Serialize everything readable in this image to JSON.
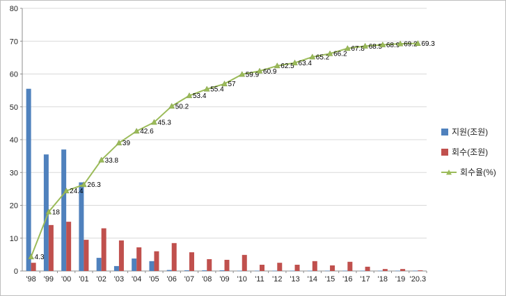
{
  "chart_data": {
    "type": "bar",
    "subtype": "combo-bar-line",
    "categories": [
      "'98",
      "'99",
      "'00",
      "'01",
      "'02",
      "'03",
      "'04",
      "'05",
      "'06",
      "'07",
      "'08",
      "'09",
      "'10",
      "'11",
      "'12",
      "'13",
      "'14",
      "'15",
      "'16",
      "'17",
      "'18",
      "'19",
      "'20.3"
    ],
    "series": [
      {
        "name": "지원(조원)",
        "type": "bar",
        "color": "#4F81BD",
        "values": [
          55.5,
          35.5,
          37,
          27,
          4,
          1.5,
          3.8,
          3,
          0.3,
          0.2,
          0.2,
          0.2,
          0.1,
          0.1,
          0.1,
          0.1,
          0.1,
          0.1,
          0.1,
          0.1,
          0.1,
          0.1,
          0.1
        ]
      },
      {
        "name": "회수(조원)",
        "type": "bar",
        "color": "#C0504D",
        "values": [
          2.5,
          14,
          15,
          9.5,
          13,
          9.3,
          7.2,
          6,
          8.5,
          5.7,
          3.6,
          3.4,
          4.9,
          1.9,
          2.5,
          1.9,
          3,
          1.7,
          2.8,
          1.3,
          0.6,
          0.6,
          0.2
        ]
      },
      {
        "name": "회수율(%)",
        "type": "line",
        "color": "#9BBB59",
        "marker": "triangle",
        "values": [
          4.3,
          18,
          24.4,
          26.3,
          33.8,
          39,
          42.6,
          45.3,
          50.2,
          53.4,
          55.4,
          57,
          59.9,
          60.9,
          62.5,
          63.4,
          65.2,
          66.2,
          67.8,
          68.5,
          68.9,
          69.2,
          69.3
        ],
        "labels": [
          "4.3",
          "18",
          "24.4",
          "26.3",
          "33.8",
          "39",
          "42.6",
          "45.3",
          "50.2",
          "53.4",
          "55.4",
          "57",
          "59.9",
          "60.9",
          "62.5",
          "63.4",
          "65.2",
          "66.2",
          "67.8",
          "68.5",
          "68.9",
          "69.2",
          "69.3"
        ]
      }
    ],
    "ylim": [
      0,
      80
    ],
    "ytick_interval": 10,
    "yticks": [
      "0",
      "10",
      "20",
      "30",
      "40",
      "50",
      "60",
      "70",
      "80"
    ],
    "grid": true,
    "legend_position": "right",
    "grid_color": "#d9d9d9",
    "axis_color": "#8c8c8c"
  }
}
